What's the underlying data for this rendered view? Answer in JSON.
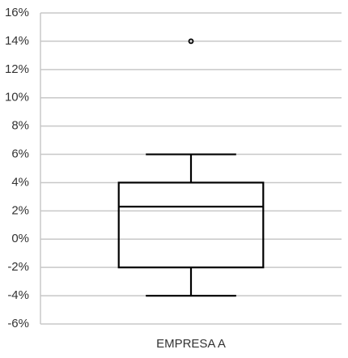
{
  "chart_data": {
    "type": "box",
    "categories": [
      "EMPRESA A"
    ],
    "boxes": [
      {
        "whislo": -4,
        "q1": -2,
        "med": 2.3,
        "q3": 4,
        "whishi": 6,
        "fliers": [
          14
        ]
      }
    ],
    "color": "#000000",
    "ylim": [
      -6,
      16
    ],
    "yticks": [
      {
        "value": -6,
        "label": "-6%"
      },
      {
        "value": -4,
        "label": "-4%"
      },
      {
        "value": -2,
        "label": "-2%"
      },
      {
        "value": 0,
        "label": "0%"
      },
      {
        "value": 2,
        "label": "2%"
      },
      {
        "value": 4,
        "label": "4%"
      },
      {
        "value": 6,
        "label": "6%"
      },
      {
        "value": 8,
        "label": "8%"
      },
      {
        "value": 10,
        "label": "10%"
      },
      {
        "value": 12,
        "label": "12%"
      },
      {
        "value": 14,
        "label": "14%"
      },
      {
        "value": 16,
        "label": "16%"
      }
    ],
    "grid": true
  }
}
